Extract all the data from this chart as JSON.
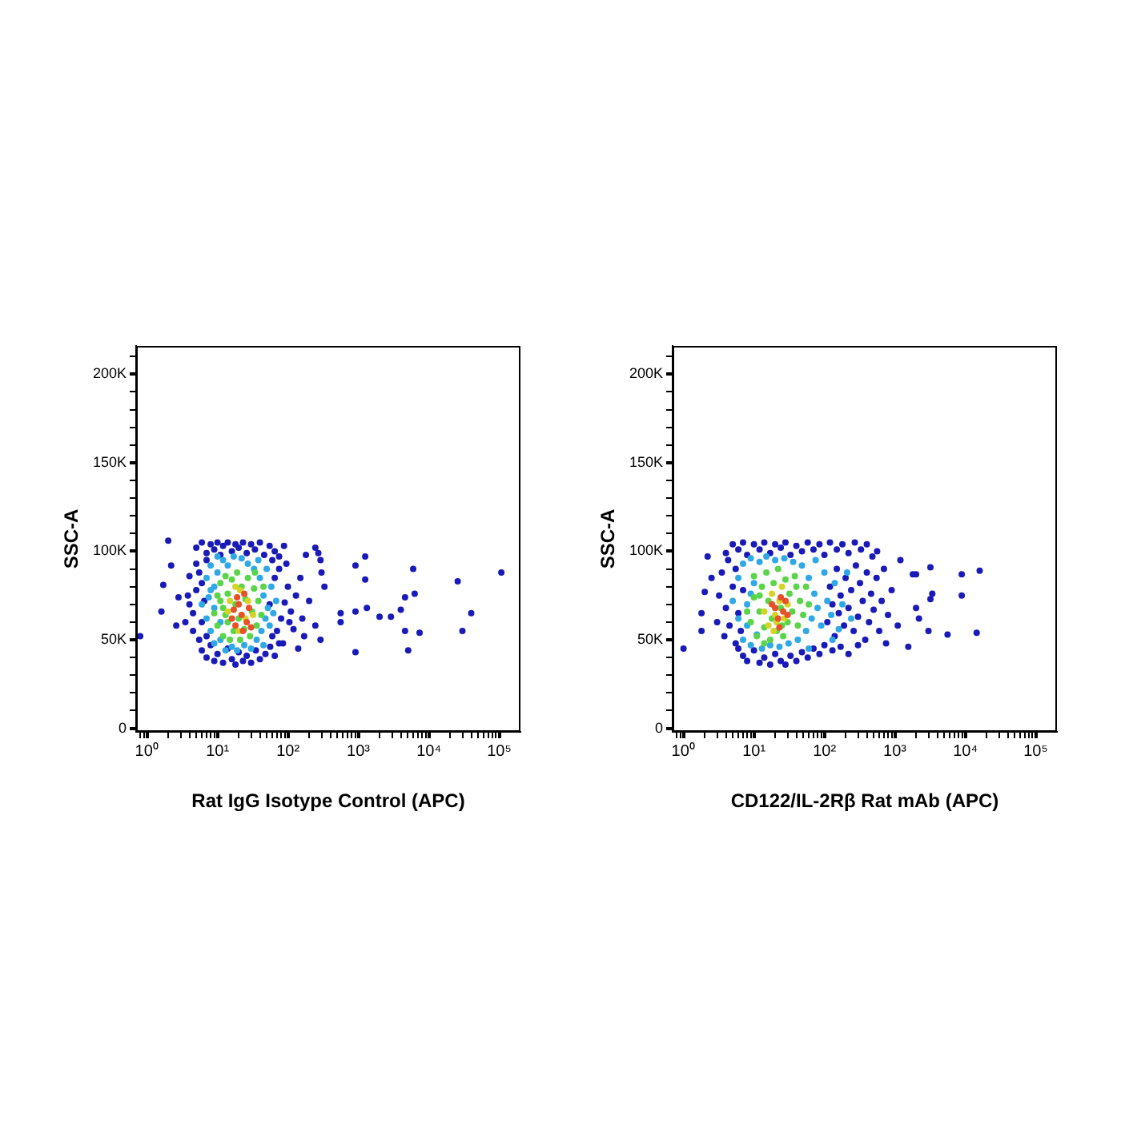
{
  "chart_data": [
    {
      "type": "scatter",
      "xlabel": "Rat IgG Isotype Control (APC)",
      "ylabel": "SSC-A",
      "log": "x",
      "marker": "circle",
      "xlim": [
        0.7,
        200000
      ],
      "ylim": [
        -2000,
        216000
      ],
      "xticks": [
        {
          "value": 0.8,
          "label": null
        },
        {
          "value": 0.9,
          "label": null
        },
        {
          "value": 1,
          "label": "10⁰"
        },
        {
          "value": 2,
          "label": null
        },
        {
          "value": 3,
          "label": null
        },
        {
          "value": 4,
          "label": null
        },
        {
          "value": 5,
          "label": null
        },
        {
          "value": 6,
          "label": null
        },
        {
          "value": 7,
          "label": null
        },
        {
          "value": 8,
          "label": null
        },
        {
          "value": 9,
          "label": null
        },
        {
          "value": 10,
          "label": "10¹"
        },
        {
          "value": 20,
          "label": null
        },
        {
          "value": 30,
          "label": null
        },
        {
          "value": 40,
          "label": null
        },
        {
          "value": 50,
          "label": null
        },
        {
          "value": 60,
          "label": null
        },
        {
          "value": 70,
          "label": null
        },
        {
          "value": 80,
          "label": null
        },
        {
          "value": 90,
          "label": null
        },
        {
          "value": 100,
          "label": "10²"
        },
        {
          "value": 200,
          "label": null
        },
        {
          "value": 300,
          "label": null
        },
        {
          "value": 400,
          "label": null
        },
        {
          "value": 500,
          "label": null
        },
        {
          "value": 600,
          "label": null
        },
        {
          "value": 700,
          "label": null
        },
        {
          "value": 800,
          "label": null
        },
        {
          "value": 900,
          "label": null
        },
        {
          "value": 1000,
          "label": "10³"
        },
        {
          "value": 2000,
          "label": null
        },
        {
          "value": 3000,
          "label": null
        },
        {
          "value": 4000,
          "label": null
        },
        {
          "value": 5000,
          "label": null
        },
        {
          "value": 6000,
          "label": null
        },
        {
          "value": 7000,
          "label": null
        },
        {
          "value": 8000,
          "label": null
        },
        {
          "value": 9000,
          "label": null
        },
        {
          "value": 10000,
          "label": "10⁴"
        },
        {
          "value": 20000,
          "label": null
        },
        {
          "value": 30000,
          "label": null
        },
        {
          "value": 40000,
          "label": null
        },
        {
          "value": 50000,
          "label": null
        },
        {
          "value": 60000,
          "label": null
        },
        {
          "value": 70000,
          "label": null
        },
        {
          "value": 80000,
          "label": null
        },
        {
          "value": 90000,
          "label": null
        },
        {
          "value": 100000,
          "label": "10⁵"
        }
      ],
      "yticks": [
        0,
        {
          "value": 10000,
          "label": null
        },
        {
          "value": 20000,
          "label": null
        },
        {
          "value": 30000,
          "label": null
        },
        {
          "value": 40000,
          "label": null
        },
        {
          "value": 50000,
          "label": "50K"
        },
        {
          "value": 60000,
          "label": null
        },
        {
          "value": 70000,
          "label": null
        },
        {
          "value": 80000,
          "label": null
        },
        {
          "value": 90000,
          "label": null
        },
        {
          "value": 100000,
          "label": "100K"
        },
        {
          "value": 110000,
          "label": null
        },
        {
          "value": 120000,
          "label": null
        },
        {
          "value": 130000,
          "label": null
        },
        {
          "value": 140000,
          "label": null
        },
        {
          "value": 150000,
          "label": "150K"
        },
        {
          "value": 160000,
          "label": null
        },
        {
          "value": 170000,
          "label": null
        },
        {
          "value": 180000,
          "label": null
        },
        {
          "value": 190000,
          "label": null
        },
        {
          "value": 200000,
          "label": "200K"
        },
        {
          "value": 210000,
          "label": null
        }
      ],
      "series": [
        {
          "color": "#1a1ab8",
          "x": [
            5,
            6,
            7,
            8,
            9,
            10,
            11,
            12,
            14,
            16,
            18,
            20,
            23,
            26,
            30,
            34,
            40,
            46,
            55,
            65,
            75,
            88,
            6,
            7,
            8,
            9,
            10,
            12,
            14,
            16,
            18,
            20,
            23,
            26,
            30,
            35,
            40,
            48,
            56,
            65,
            75,
            3.5,
            4,
            4,
            4.5,
            5,
            5,
            4.5,
            3.8,
            5.5,
            5.5,
            6,
            6.5,
            7,
            7,
            6,
            70,
            80,
            90,
            100,
            75,
            110,
            120,
            95,
            85,
            60,
            65,
            55,
            60,
            105,
            130,
            150,
            160,
            180,
            200,
            140,
            170,
            0.8,
            1.6,
            1.7,
            2,
            2.2,
            2.6,
            2.8,
            245,
            270,
            290,
            300,
            330,
            245,
            290,
            560,
            560,
            910,
            910,
            1250,
            1250,
            1320,
            910,
            2000,
            2900,
            4000,
            4600,
            6300,
            6000,
            4600,
            7400,
            5100,
            25700,
            30000,
            40000,
            107000
          ],
          "values": [
            102000,
            105000,
            99000,
            104000,
            101000,
            105000,
            98000,
            103000,
            105000,
            100000,
            104000,
            102000,
            105000,
            99000,
            104000,
            101000,
            105000,
            98000,
            103000,
            100000,
            97000,
            103000,
            44000,
            40000,
            47000,
            38000,
            42000,
            37000,
            45000,
            39000,
            36000,
            43000,
            38000,
            41000,
            37000,
            44000,
            39000,
            42000,
            46000,
            41000,
            48000,
            60000,
            70000,
            86000,
            55000,
            78000,
            93000,
            65000,
            75000,
            50000,
            88000,
            60000,
            72000,
            52000,
            95000,
            82000,
            55000,
            62000,
            71000,
            80000,
            90000,
            66000,
            56000,
            93000,
            48000,
            52000,
            85000,
            70000,
            95000,
            60000,
            75000,
            85000,
            62000,
            98000,
            72000,
            45000,
            52000,
            52000,
            66000,
            81000,
            106000,
            92000,
            58000,
            74000,
            102000,
            99000,
            95000,
            88000,
            80000,
            58000,
            50000,
            65000,
            60000,
            43000,
            92000,
            97000,
            84000,
            68000,
            66000,
            63000,
            63000,
            67000,
            74000,
            76000,
            90000,
            55000,
            54000,
            44000,
            83000,
            55000,
            65000,
            88000
          ]
        },
        {
          "color": "#2fa8e6",
          "x": [
            6,
            7,
            7,
            8,
            8,
            8,
            9,
            9,
            10,
            10,
            11,
            12,
            13,
            14,
            16,
            17,
            19,
            22,
            24,
            27,
            30,
            33,
            36,
            40,
            42,
            45,
            48,
            50,
            52,
            55,
            58,
            62,
            45,
            9,
            7.5,
            11,
            38,
            68
          ],
          "values": [
            70000,
            62000,
            85000,
            55000,
            78000,
            92000,
            48000,
            68000,
            88000,
            97000,
            50000,
            95000,
            44000,
            92000,
            46000,
            97000,
            44000,
            96000,
            47000,
            93000,
            45000,
            90000,
            50000,
            85000,
            55000,
            75000,
            62000,
            90000,
            68000,
            58000,
            80000,
            65000,
            47000,
            80000,
            74000,
            60000,
            95000,
            72000
          ]
        },
        {
          "color": "#5ad448",
          "x": [
            9,
            10,
            10,
            11,
            12,
            12,
            13,
            14,
            14,
            15,
            16,
            17,
            18,
            19,
            21,
            22,
            24,
            25,
            27,
            29,
            31,
            33,
            36,
            38,
            42,
            45,
            13,
            20,
            34,
            11
          ],
          "values": [
            65000,
            58000,
            75000,
            82000,
            52000,
            68000,
            86000,
            60000,
            76000,
            50000,
            84000,
            55000,
            70000,
            88000,
            50000,
            80000,
            56000,
            73000,
            85000,
            52000,
            66000,
            79000,
            58000,
            72000,
            64000,
            80000,
            64000,
            62000,
            88000,
            72000
          ]
        },
        {
          "color": "#d4d428",
          "x": [
            14,
            15,
            21,
            25,
            27,
            32,
            18,
            20
          ],
          "values": [
            66000,
            72000,
            78000,
            62000,
            72000,
            64000,
            80000,
            55000
          ]
        },
        {
          "color": "#e8502a",
          "x": [
            16,
            18,
            20,
            22,
            24,
            26,
            28,
            19,
            30,
            23,
            17
          ],
          "values": [
            62000,
            58000,
            70000,
            64000,
            76000,
            60000,
            68000,
            74000,
            57000,
            55000,
            67000
          ]
        }
      ]
    },
    {
      "type": "scatter",
      "xlabel": "CD122/IL-2Rβ Rat mAb (APC)",
      "ylabel": "SSC-A",
      "log": "x",
      "marker": "circle",
      "xlim": [
        0.7,
        200000
      ],
      "ylim": [
        -2000,
        216000
      ],
      "xticks": [
        {
          "value": 0.8,
          "label": null
        },
        {
          "value": 0.9,
          "label": null
        },
        {
          "value": 1,
          "label": "10⁰"
        },
        {
          "value": 2,
          "label": null
        },
        {
          "value": 3,
          "label": null
        },
        {
          "value": 4,
          "label": null
        },
        {
          "value": 5,
          "label": null
        },
        {
          "value": 6,
          "label": null
        },
        {
          "value": 7,
          "label": null
        },
        {
          "value": 8,
          "label": null
        },
        {
          "value": 9,
          "label": null
        },
        {
          "value": 10,
          "label": "10¹"
        },
        {
          "value": 20,
          "label": null
        },
        {
          "value": 30,
          "label": null
        },
        {
          "value": 40,
          "label": null
        },
        {
          "value": 50,
          "label": null
        },
        {
          "value": 60,
          "label": null
        },
        {
          "value": 70,
          "label": null
        },
        {
          "value": 80,
          "label": null
        },
        {
          "value": 90,
          "label": null
        },
        {
          "value": 100,
          "label": "10²"
        },
        {
          "value": 200,
          "label": null
        },
        {
          "value": 300,
          "label": null
        },
        {
          "value": 400,
          "label": null
        },
        {
          "value": 500,
          "label": null
        },
        {
          "value": 600,
          "label": null
        },
        {
          "value": 700,
          "label": null
        },
        {
          "value": 800,
          "label": null
        },
        {
          "value": 900,
          "label": null
        },
        {
          "value": 1000,
          "label": "10³"
        },
        {
          "value": 2000,
          "label": null
        },
        {
          "value": 3000,
          "label": null
        },
        {
          "value": 4000,
          "label": null
        },
        {
          "value": 5000,
          "label": null
        },
        {
          "value": 6000,
          "label": null
        },
        {
          "value": 7000,
          "label": null
        },
        {
          "value": 8000,
          "label": null
        },
        {
          "value": 9000,
          "label": null
        },
        {
          "value": 10000,
          "label": "10⁴"
        },
        {
          "value": 20000,
          "label": null
        },
        {
          "value": 30000,
          "label": null
        },
        {
          "value": 40000,
          "label": null
        },
        {
          "value": 50000,
          "label": null
        },
        {
          "value": 60000,
          "label": null
        },
        {
          "value": 70000,
          "label": null
        },
        {
          "value": 80000,
          "label": null
        },
        {
          "value": 90000,
          "label": null
        },
        {
          "value": 100000,
          "label": "10⁵"
        }
      ],
      "yticks": [
        0,
        {
          "value": 10000,
          "label": null
        },
        {
          "value": 20000,
          "label": null
        },
        {
          "value": 30000,
          "label": null
        },
        {
          "value": 40000,
          "label": null
        },
        {
          "value": 50000,
          "label": "50K"
        },
        {
          "value": 60000,
          "label": null
        },
        {
          "value": 70000,
          "label": null
        },
        {
          "value": 80000,
          "label": null
        },
        {
          "value": 90000,
          "label": null
        },
        {
          "value": 100000,
          "label": "100K"
        },
        {
          "value": 110000,
          "label": null
        },
        {
          "value": 120000,
          "label": null
        },
        {
          "value": 130000,
          "label": null
        },
        {
          "value": 140000,
          "label": null
        },
        {
          "value": 150000,
          "label": "150K"
        },
        {
          "value": 160000,
          "label": null
        },
        {
          "value": 170000,
          "label": null
        },
        {
          "value": 180000,
          "label": null
        },
        {
          "value": 190000,
          "label": null
        },
        {
          "value": 200000,
          "label": "200K"
        },
        {
          "value": 210000,
          "label": null
        }
      ],
      "series": [
        {
          "color": "#1a1ab8",
          "x": [
            4,
            5,
            6,
            7,
            8,
            10,
            12,
            14,
            17,
            20,
            24,
            28,
            33,
            40,
            48,
            58,
            70,
            85,
            100,
            120,
            150,
            180,
            220,
            270,
            330,
            400,
            480,
            560,
            6,
            7,
            8,
            10,
            12,
            14,
            17,
            20,
            24,
            28,
            33,
            40,
            48,
            58,
            70,
            85,
            100,
            130,
            170,
            220,
            300,
            3,
            3.2,
            3.5,
            3.8,
            4,
            4.3,
            4.5,
            5,
            5.5,
            5.5,
            6,
            6.5,
            7,
            110,
            120,
            130,
            140,
            150,
            160,
            170,
            190,
            200,
            220,
            240,
            260,
            280,
            300,
            320,
            350,
            380,
            400,
            430,
            460,
            500,
            550,
            600,
            650,
            700,
            800,
            900,
            750,
            1,
            1.8,
            2,
            2.2,
            1.8,
            2.5,
            1800,
            2000,
            3200,
            3400,
            3200,
            8900,
            16000,
            8900,
            14500,
            5600,
            3000,
            1550,
            2000,
            2200,
            1200,
            1100
          ],
          "values": [
            99000,
            104000,
            101000,
            105000,
            98000,
            104000,
            101000,
            105000,
            99000,
            104000,
            102000,
            105000,
            98000,
            103000,
            100000,
            105000,
            101000,
            104000,
            98000,
            105000,
            101000,
            104000,
            99000,
            105000,
            101000,
            104000,
            97000,
            100000,
            45000,
            41000,
            38000,
            44000,
            37000,
            40000,
            36000,
            42000,
            38000,
            36000,
            41000,
            38000,
            43000,
            40000,
            45000,
            42000,
            47000,
            44000,
            46000,
            42000,
            47000,
            60000,
            75000,
            88000,
            52000,
            68000,
            95000,
            58000,
            80000,
            48000,
            90000,
            65000,
            55000,
            78000,
            60000,
            80000,
            70000,
            52000,
            90000,
            65000,
            75000,
            58000,
            85000,
            68000,
            78000,
            55000,
            92000,
            63000,
            82000,
            72000,
            50000,
            88000,
            60000,
            76000,
            67000,
            85000,
            55000,
            72000,
            90000,
            64000,
            78000,
            48000,
            45000,
            65000,
            77000,
            97000,
            55000,
            85000,
            87000,
            87000,
            91000,
            76000,
            73000,
            87000,
            89000,
            75000,
            54000,
            53000,
            55000,
            46000,
            68000,
            62000,
            95000,
            58000
          ]
        },
        {
          "color": "#2fa8e6",
          "x": [
            5,
            6,
            6,
            7,
            7,
            8,
            8,
            9,
            9,
            10,
            11,
            12,
            13,
            15,
            17,
            20,
            23,
            27,
            31,
            36,
            42,
            48,
            55,
            60,
            66,
            72,
            80,
            90,
            100,
            110,
            125,
            140,
            160,
            180,
            60,
            9,
            75,
            210,
            240,
            130
          ],
          "values": [
            72000,
            62000,
            85000,
            50000,
            93000,
            70000,
            58000,
            96000,
            47000,
            82000,
            53000,
            94000,
            45000,
            97000,
            47000,
            95000,
            46000,
            96000,
            48000,
            94000,
            50000,
            92000,
            55000,
            85000,
            62000,
            76000,
            68000,
            58000,
            88000,
            72000,
            64000,
            82000,
            56000,
            70000,
            45000,
            76000,
            95000,
            88000,
            62000,
            50000
          ]
        },
        {
          "color": "#5ad448",
          "x": [
            8,
            9,
            10,
            10,
            11,
            12,
            13,
            14,
            15,
            16,
            17,
            18,
            19,
            21,
            22,
            24,
            26,
            28,
            30,
            32,
            35,
            38,
            42,
            45,
            50,
            55,
            14,
            12,
            25,
            40,
            60
          ],
          "values": [
            66000,
            60000,
            74000,
            86000,
            52000,
            66000,
            80000,
            57000,
            88000,
            72000,
            50000,
            62000,
            82000,
            55000,
            90000,
            68000,
            52000,
            84000,
            60000,
            76000,
            66000,
            86000,
            58000,
            72000,
            64000,
            80000,
            48000,
            75000,
            58000,
            80000,
            70000
          ]
        },
        {
          "color": "#d4d428",
          "x": [
            14,
            16,
            18,
            20,
            23,
            27,
            30,
            19,
            25,
            21
          ],
          "values": [
            66000,
            58000,
            76000,
            64000,
            72000,
            62000,
            70000,
            55000,
            80000,
            60000
          ]
        },
        {
          "color": "#e8502a",
          "x": [
            20,
            22,
            24,
            26,
            28,
            23,
            18,
            30
          ],
          "values": [
            68000,
            62000,
            74000,
            66000,
            72000,
            57000,
            70000,
            64000
          ]
        }
      ]
    }
  ]
}
